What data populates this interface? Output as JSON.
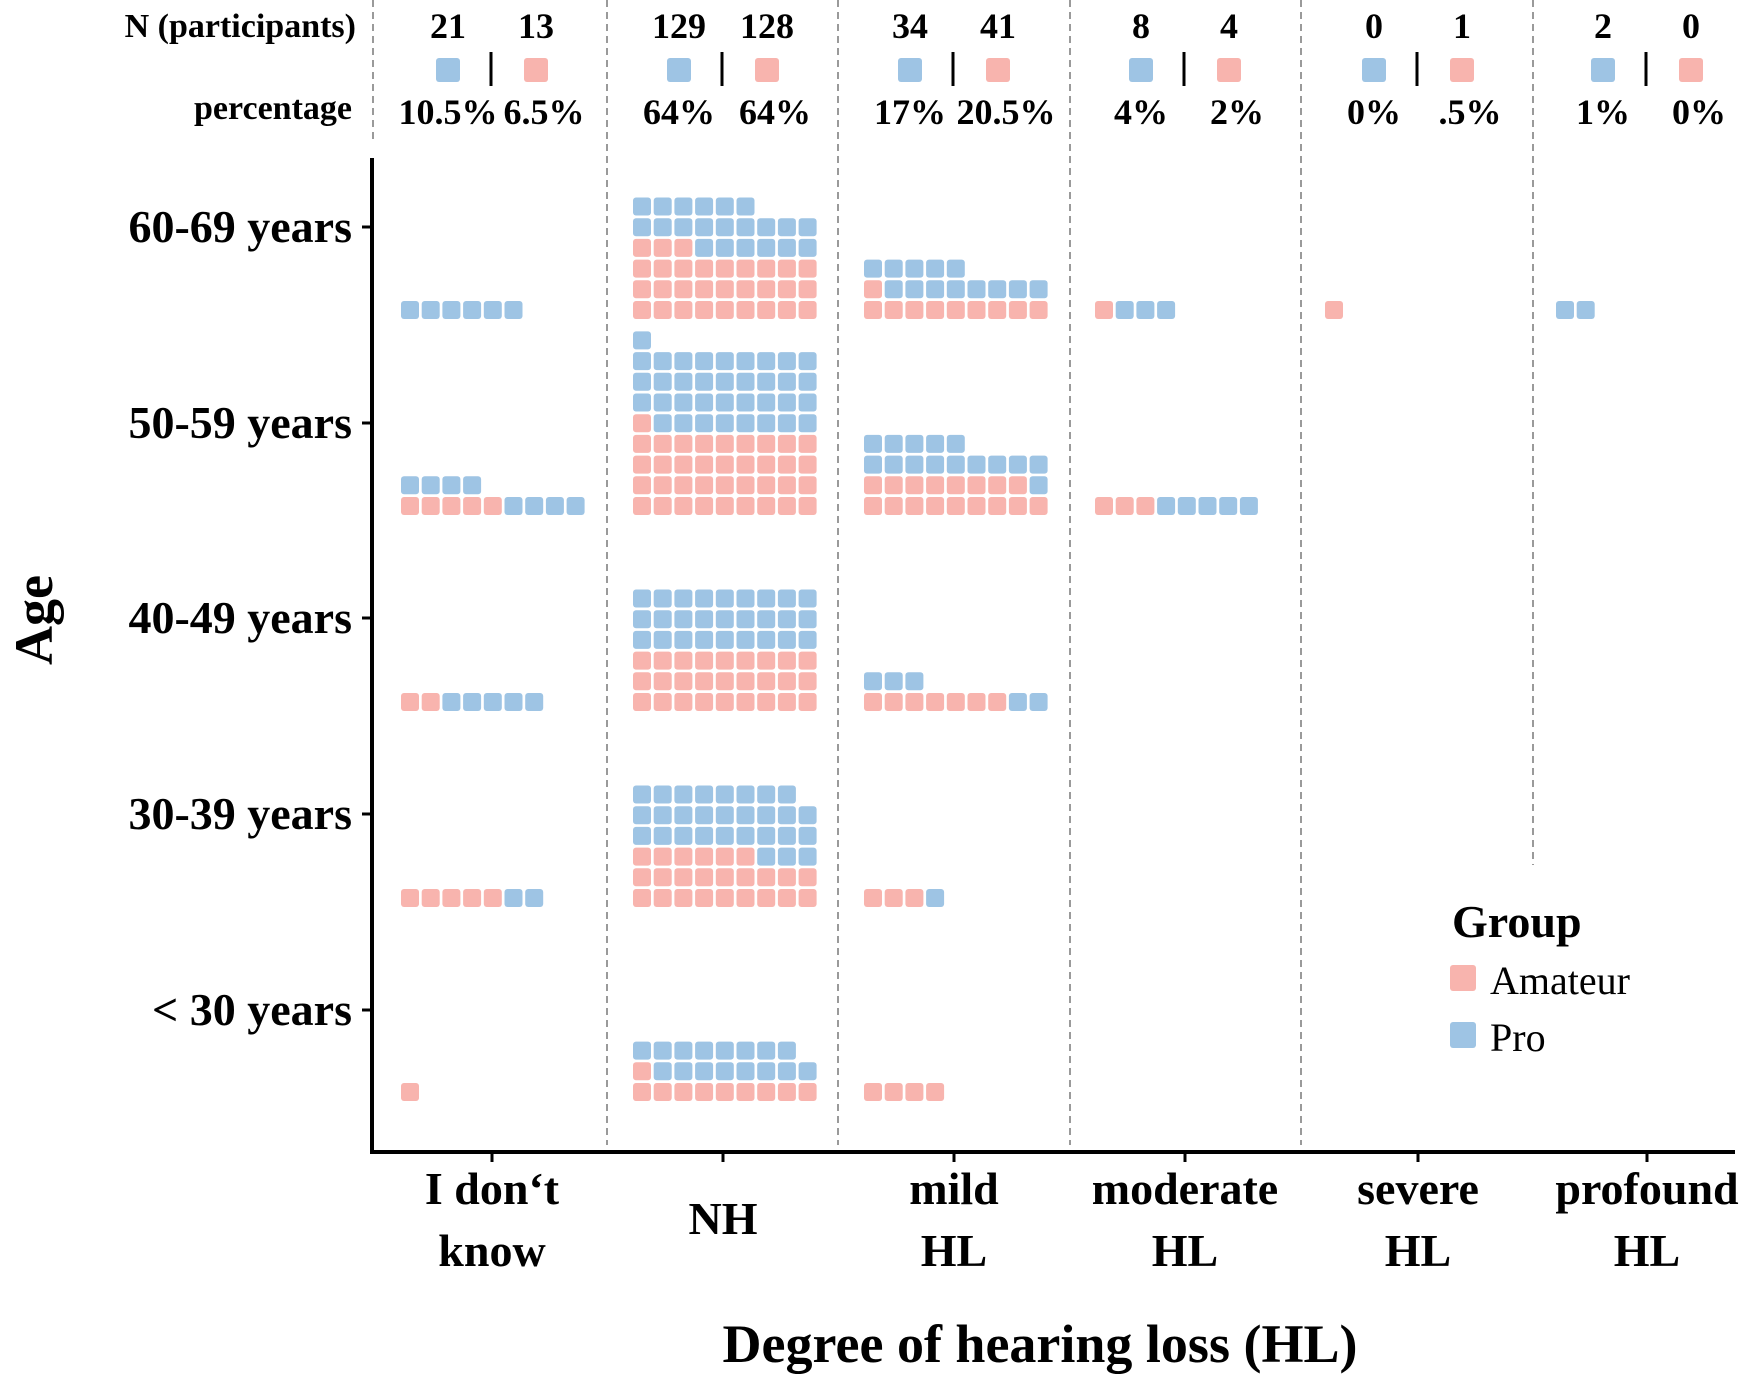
{
  "chart_data": {
    "type": "waffle",
    "xlabel": "Degree of hearing loss (HL)",
    "ylabel": "Age",
    "header_labels": {
      "n": "N (participants)",
      "pct": "percentage"
    },
    "categories": [
      {
        "label": [
          "I don‘t",
          "know"
        ],
        "pro_n": "21",
        "amateur_n": "13",
        "pro_pct": "10.5%",
        "amateur_pct": "6.5%"
      },
      {
        "label": [
          "NH"
        ],
        "pro_n": "129",
        "amateur_n": "128",
        "pro_pct": "64%",
        "amateur_pct": "64%"
      },
      {
        "label": [
          "mild",
          "HL"
        ],
        "pro_n": "34",
        "amateur_n": "41",
        "pro_pct": "17%",
        "amateur_pct": "20.5%"
      },
      {
        "label": [
          "moderate",
          "HL"
        ],
        "pro_n": "8",
        "amateur_n": "4",
        "pro_pct": "4%",
        "amateur_pct": "2%"
      },
      {
        "label": [
          "severe",
          "HL"
        ],
        "pro_n": "0",
        "amateur_n": "1",
        "pro_pct": "0%",
        "amateur_pct": ".5%"
      },
      {
        "label": [
          "profound",
          "HL"
        ],
        "pro_n": "2",
        "amateur_n": "0",
        "pro_pct": "1%",
        "amateur_pct": "0%"
      }
    ],
    "age_groups": [
      "60-69 years",
      "50-59 years",
      "40-49 years",
      "30-39 years",
      "< 30 years"
    ],
    "squares_per_row": 9,
    "series": [
      {
        "name": "Amateur",
        "color": "#F8B4AE",
        "counts_by_age": [
          [
            0,
            30,
            10,
            1,
            1,
            0
          ],
          [
            5,
            37,
            17,
            3,
            0,
            0
          ],
          [
            2,
            27,
            7,
            0,
            0,
            0
          ],
          [
            5,
            24,
            3,
            0,
            0,
            0
          ],
          [
            1,
            10,
            4,
            0,
            0,
            0
          ]
        ]
      },
      {
        "name": "Pro",
        "color": "#9EC4E4",
        "counts_by_age": [
          [
            6,
            21,
            13,
            3,
            0,
            2
          ],
          [
            8,
            36,
            15,
            5,
            0,
            0
          ],
          [
            5,
            27,
            5,
            0,
            0,
            0
          ],
          [
            2,
            29,
            1,
            0,
            0,
            0
          ],
          [
            0,
            16,
            0,
            0,
            0,
            0
          ]
        ]
      }
    ],
    "legend": {
      "title": "Group",
      "position": "bottom-right",
      "items": [
        "Amateur",
        "Pro"
      ]
    },
    "grid": "dashed vertical separators between categories"
  }
}
